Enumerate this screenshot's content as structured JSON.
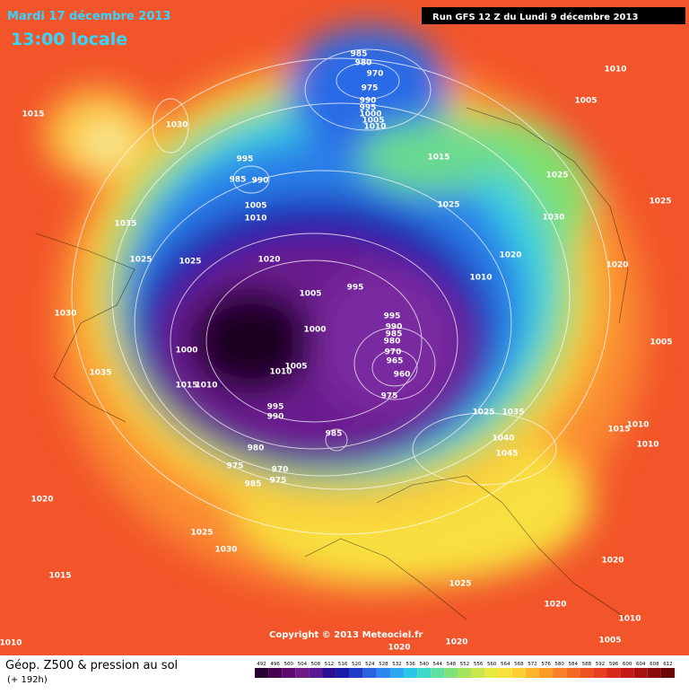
{
  "header": {
    "date": "Mardi 17 décembre 2013",
    "time": "13:00 locale",
    "run": "Run GFS 12 Z du Lundi 9 décembre 2013"
  },
  "copyright": "Copyright © 2013 Meteociel.fr",
  "footer": {
    "title": "Géop. Z500 & pression au sol",
    "lead": "(+ 192h)"
  },
  "isobar_labels": [
    985,
    980,
    970,
    975,
    990,
    995,
    1000,
    1005,
    1010,
    1010,
    1005,
    1015,
    1030,
    995,
    985,
    990,
    1005,
    1010,
    1015,
    1025,
    1025,
    1025,
    1030,
    1035,
    1025,
    1025,
    1020,
    1020,
    1020,
    1010,
    1005,
    995,
    995,
    990,
    985,
    980,
    1030,
    1000,
    1005,
    970,
    965,
    960,
    1000,
    1005,
    1010,
    975,
    1035,
    1015,
    1010,
    995,
    990,
    1025,
    1035,
    1010,
    1015,
    1010,
    985,
    980,
    1040,
    1045,
    975,
    970,
    975,
    985,
    1020,
    1025,
    1030,
    1015,
    1025,
    1020,
    1020,
    1010,
    1005,
    1020,
    1020,
    1010
  ],
  "legend": {
    "values": [
      492,
      496,
      500,
      504,
      508,
      512,
      516,
      520,
      524,
      528,
      532,
      536,
      540,
      544,
      548,
      552,
      556,
      560,
      564,
      568,
      572,
      576,
      580,
      584,
      588,
      592,
      596,
      600,
      604,
      608,
      612
    ],
    "colors": [
      "#2a0030",
      "#45004f",
      "#5e0a6e",
      "#6f1a86",
      "#5a1896",
      "#2a1090",
      "#1a1aa8",
      "#1f3cc8",
      "#2a62e0",
      "#2f86ee",
      "#2ea8f0",
      "#2cc6e8",
      "#3fd8c8",
      "#5fe0a0",
      "#80e27a",
      "#a8e45a",
      "#cbe64a",
      "#e8ea40",
      "#f6e23a",
      "#fccf32",
      "#fdb42c",
      "#fc9a28",
      "#f98026",
      "#f46a24",
      "#ee5422",
      "#e63e20",
      "#d82a1c",
      "#c41a18",
      "#a81212",
      "#8a0c0c",
      "#6a0808"
    ]
  }
}
